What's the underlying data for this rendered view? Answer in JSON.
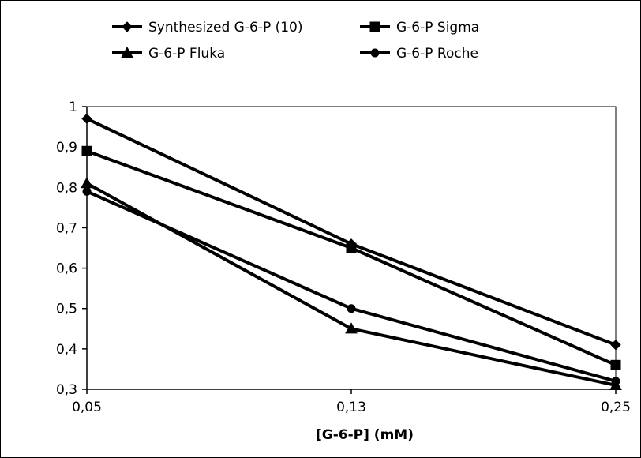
{
  "chart_data": {
    "type": "line",
    "categories": [
      "0,05",
      "0,13",
      "0,25"
    ],
    "xlabel": "[G-6-P] (mM)",
    "ylabel": "",
    "title": "",
    "ylim": [
      0.3,
      1.0
    ],
    "yticks": [
      0.3,
      0.4,
      0.5,
      0.6,
      0.7,
      0.8,
      0.9,
      1.0
    ],
    "ytick_labels": [
      "0,3",
      "0,4",
      "0,5",
      "0,6",
      "0,7",
      "0,8",
      "0,9",
      "1"
    ],
    "grid": false,
    "legend_position": "top",
    "series": [
      {
        "name": "Synthesized G-6-P (10)",
        "marker": "diamond",
        "values": [
          0.97,
          0.66,
          0.41
        ]
      },
      {
        "name": "G-6-P Sigma",
        "marker": "square",
        "values": [
          0.89,
          0.65,
          0.36
        ]
      },
      {
        "name": "G-6-P Fluka",
        "marker": "triangle",
        "values": [
          0.81,
          0.45,
          0.31
        ]
      },
      {
        "name": "G-6-P Roche",
        "marker": "circle",
        "values": [
          0.79,
          0.5,
          0.32
        ]
      }
    ],
    "line_color": "#000000"
  }
}
